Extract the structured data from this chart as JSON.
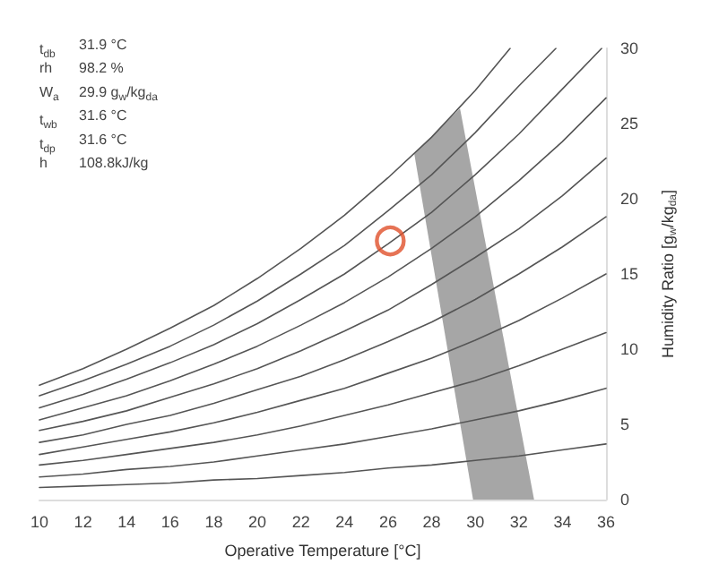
{
  "chart_data": {
    "type": "line",
    "xlabel": "Operative Temperature [°C]",
    "ylabel": "Humidity Ratio [g$_{w}$/kg$_{da}$]",
    "x": [
      10,
      12,
      14,
      16,
      18,
      20,
      22,
      24,
      26,
      28,
      30,
      32,
      34,
      36
    ],
    "xlim": [
      10,
      36
    ],
    "xticks": [
      10,
      12,
      14,
      16,
      18,
      20,
      22,
      24,
      26,
      28,
      30,
      32,
      34,
      36
    ],
    "ylim": [
      0,
      30
    ],
    "yticks": [
      0,
      5,
      10,
      15,
      20,
      25,
      30
    ],
    "grid": false,
    "marker": "none",
    "line_style": "solid",
    "series": [
      {
        "type": "area",
        "color": "#a6a6a6",
        "x": [
          29.9,
          27.2,
          29.3,
          32.7,
          29.9
        ],
        "values": [
          0,
          23,
          26,
          0,
          0
        ]
      },
      {
        "color": "#555555",
        "values": [
          0.8,
          0.9,
          1.0,
          1.1,
          1.3,
          1.4,
          1.6,
          1.8,
          2.1,
          2.3,
          2.6,
          2.9,
          3.3,
          3.7
        ]
      },
      {
        "color": "#555555",
        "values": [
          1.5,
          1.7,
          2.0,
          2.2,
          2.5,
          2.9,
          3.3,
          3.7,
          4.2,
          4.7,
          5.3,
          5.9,
          6.6,
          7.4
        ]
      },
      {
        "color": "#555555",
        "values": [
          2.3,
          2.6,
          3.0,
          3.4,
          3.8,
          4.3,
          4.9,
          5.6,
          6.3,
          7.1,
          7.9,
          8.9,
          10.0,
          11.1
        ]
      },
      {
        "color": "#555555",
        "values": [
          3.0,
          3.5,
          4.0,
          4.5,
          5.1,
          5.8,
          6.6,
          7.4,
          8.4,
          9.4,
          10.6,
          11.9,
          13.4,
          15.0
        ]
      },
      {
        "color": "#555555",
        "values": [
          3.8,
          4.3,
          5.0,
          5.6,
          6.4,
          7.3,
          8.2,
          9.3,
          10.5,
          11.8,
          13.3,
          15.0,
          16.8,
          18.8
        ]
      },
      {
        "color": "#555555",
        "values": [
          4.6,
          5.2,
          5.9,
          6.8,
          7.7,
          8.7,
          9.9,
          11.2,
          12.6,
          14.3,
          16.1,
          18.0,
          20.2,
          22.7
        ]
      },
      {
        "color": "#555555",
        "values": [
          5.3,
          6.1,
          6.9,
          7.9,
          9.0,
          10.2,
          11.6,
          13.1,
          14.8,
          16.7,
          18.8,
          21.2,
          23.8,
          26.7
        ]
      },
      {
        "color": "#555555",
        "x": [
          10,
          12,
          14,
          16,
          18,
          20,
          22,
          24,
          26,
          28,
          30,
          32,
          34,
          35.8
        ],
        "values": [
          6.1,
          7.0,
          8.0,
          9.1,
          10.3,
          11.7,
          13.3,
          15.0,
          17.0,
          19.1,
          21.6,
          24.3,
          27.3,
          30
        ]
      },
      {
        "color": "#555555",
        "x": [
          10,
          12,
          14,
          16,
          18,
          20,
          22,
          24,
          26,
          28,
          30,
          32,
          33.7
        ],
        "values": [
          6.9,
          7.9,
          9.0,
          10.2,
          11.6,
          13.2,
          15.0,
          16.9,
          19.2,
          21.6,
          24.4,
          27.5,
          30
        ]
      },
      {
        "color": "#555555",
        "x": [
          10,
          12,
          14,
          16,
          18,
          20,
          22,
          24,
          26,
          28,
          30,
          31.6
        ],
        "values": [
          7.6,
          8.7,
          10.0,
          11.4,
          12.9,
          14.7,
          16.7,
          18.9,
          21.4,
          24.1,
          27.2,
          30
        ]
      },
      {
        "type": "scatter",
        "color": "#e0502a",
        "marker": "circle",
        "x": [
          26.1
        ],
        "values": [
          17.2
        ]
      }
    ],
    "annotations": [
      "t$_{db}$ 31.9 °C",
      "rh 98.2 %",
      "W$_{a}$ 29.9 g$_{w}$/kg$_{da}$",
      "t$_{wb}$ 31.6 °C",
      "t$_{dp}$ 31.6 °C",
      "h 108.8kJ/kg"
    ]
  }
}
